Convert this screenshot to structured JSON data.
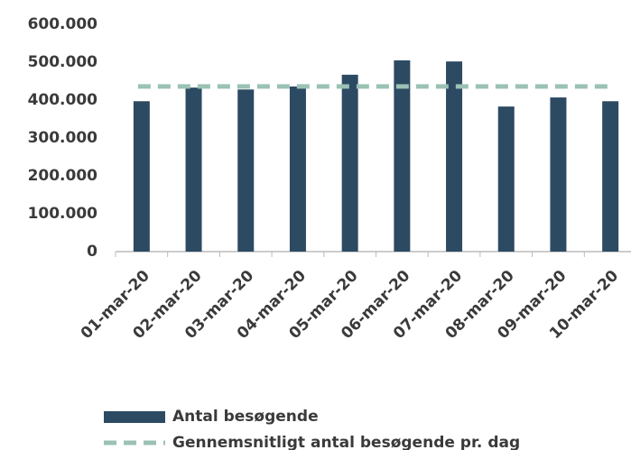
{
  "chart_data": {
    "type": "bar",
    "categories": [
      "01-mar-20",
      "02-mar-20",
      "03-mar-20",
      "04-mar-20",
      "05-mar-20",
      "06-mar-20",
      "07-mar-20",
      "08-mar-20",
      "09-mar-20",
      "10-mar-20"
    ],
    "series": [
      {
        "name": "Antal besøgende",
        "type": "bar",
        "color": "#2d4a63",
        "values": [
          397000,
          433000,
          428000,
          436000,
          467000,
          505000,
          502000,
          383000,
          407000,
          397000
        ]
      },
      {
        "name": "Gennemsnitligt antal besøgende pr. dag",
        "type": "line",
        "color": "#9bc2b4",
        "values": [
          436000,
          436000,
          436000,
          436000,
          436000,
          436000,
          436000,
          436000,
          436000,
          436000
        ]
      }
    ],
    "ylim": [
      0,
      600000
    ],
    "yticks": [
      0,
      {
        "value": 100000,
        "label": "100.000"
      },
      {
        "value": 200000,
        "label": "200.000"
      },
      {
        "value": 300000,
        "label": "300.000"
      },
      {
        "value": 400000,
        "label": "400.000"
      },
      {
        "value": 500000,
        "label": "500.000"
      },
      {
        "value": 600000,
        "label": "600.000"
      }
    ],
    "grid": false,
    "legend": "bottom"
  }
}
